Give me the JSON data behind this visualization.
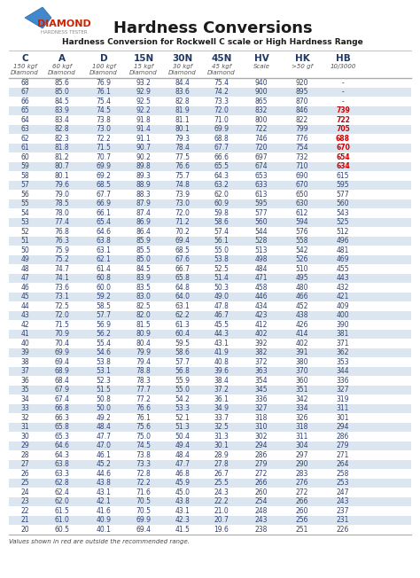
{
  "title": "Hardness Conversions",
  "subtitle": "Hardness Conversion for Rockwell C scale or High Hardness Range",
  "col_headers": [
    "C",
    "A",
    "D",
    "15N",
    "30N",
    "45N",
    "HV",
    "HK",
    "HB"
  ],
  "col_sub1": [
    "150 kgf",
    "60 kgf",
    "100 kgf",
    "15 kgf",
    "30 kgf",
    "45 kgf",
    "Scale",
    ">50 gf",
    "10/3000"
  ],
  "col_sub2": [
    "Diamond",
    "Diamond",
    "Diamond",
    "Diamond",
    "Diamond",
    "Diamond",
    "",
    "",
    ""
  ],
  "footer": "Values shown in red are outside the recommended range.",
  "rows": [
    [
      68,
      85.6,
      76.9,
      93.2,
      84.4,
      75.4,
      940,
      920,
      "-"
    ],
    [
      67,
      85.0,
      76.1,
      92.9,
      83.6,
      74.2,
      900,
      895,
      "-"
    ],
    [
      66,
      84.5,
      75.4,
      92.5,
      82.8,
      73.3,
      865,
      870,
      "-"
    ],
    [
      65,
      83.9,
      74.5,
      92.2,
      81.9,
      72.0,
      832,
      846,
      739
    ],
    [
      64,
      83.4,
      73.8,
      91.8,
      81.1,
      71.0,
      800,
      822,
      722
    ],
    [
      63,
      82.8,
      73.0,
      91.4,
      80.1,
      69.9,
      722,
      799,
      705
    ],
    [
      62,
      82.3,
      72.2,
      91.1,
      79.3,
      68.8,
      746,
      776,
      688
    ],
    [
      61,
      81.8,
      71.5,
      90.7,
      78.4,
      67.7,
      720,
      754,
      670
    ],
    [
      60,
      81.2,
      70.7,
      90.2,
      77.5,
      66.6,
      697,
      732,
      654
    ],
    [
      59,
      80.7,
      69.9,
      89.8,
      76.6,
      65.5,
      674,
      710,
      634
    ],
    [
      58,
      80.1,
      69.2,
      89.3,
      75.7,
      64.3,
      653,
      690,
      615
    ],
    [
      57,
      79.6,
      68.5,
      88.9,
      74.8,
      63.2,
      633,
      670,
      595
    ],
    [
      56,
      79.0,
      67.7,
      88.3,
      73.9,
      62.0,
      613,
      650,
      577
    ],
    [
      55,
      78.5,
      66.9,
      87.9,
      73.0,
      60.9,
      595,
      630,
      560
    ],
    [
      54,
      78.0,
      66.1,
      87.4,
      72.0,
      59.8,
      577,
      612,
      543
    ],
    [
      53,
      77.4,
      65.4,
      86.9,
      71.2,
      58.6,
      560,
      594,
      525
    ],
    [
      52,
      76.8,
      64.6,
      86.4,
      70.2,
      57.4,
      544,
      576,
      512
    ],
    [
      51,
      76.3,
      63.8,
      85.9,
      69.4,
      56.1,
      528,
      558,
      496
    ],
    [
      50,
      75.9,
      63.1,
      85.5,
      68.5,
      55.0,
      513,
      542,
      481
    ],
    [
      49,
      75.2,
      62.1,
      85.0,
      67.6,
      53.8,
      498,
      526,
      469
    ],
    [
      48,
      74.7,
      61.4,
      84.5,
      66.7,
      52.5,
      484,
      510,
      455
    ],
    [
      47,
      74.1,
      60.8,
      83.9,
      65.8,
      51.4,
      471,
      495,
      443
    ],
    [
      46,
      73.6,
      60.0,
      83.5,
      64.8,
      50.3,
      458,
      480,
      432
    ],
    [
      45,
      73.1,
      59.2,
      83.0,
      64.0,
      49.0,
      446,
      466,
      421
    ],
    [
      44,
      72.5,
      58.5,
      82.5,
      63.1,
      47.8,
      434,
      452,
      409
    ],
    [
      43,
      72.0,
      57.7,
      82.0,
      62.2,
      46.7,
      423,
      438,
      400
    ],
    [
      42,
      71.5,
      56.9,
      81.5,
      61.3,
      45.5,
      412,
      426,
      390
    ],
    [
      41,
      70.9,
      56.2,
      80.9,
      60.4,
      44.3,
      402,
      414,
      381
    ],
    [
      40,
      70.4,
      55.4,
      80.4,
      59.5,
      43.1,
      392,
      402,
      371
    ],
    [
      39,
      69.9,
      54.6,
      79.9,
      58.6,
      41.9,
      382,
      391,
      362
    ],
    [
      38,
      69.4,
      53.8,
      79.4,
      57.7,
      40.8,
      372,
      380,
      353
    ],
    [
      37,
      68.9,
      53.1,
      78.8,
      56.8,
      39.6,
      363,
      370,
      344
    ],
    [
      36,
      68.4,
      52.3,
      78.3,
      55.9,
      38.4,
      354,
      360,
      336
    ],
    [
      35,
      67.9,
      51.5,
      77.7,
      55.0,
      37.2,
      345,
      351,
      327
    ],
    [
      34,
      67.4,
      50.8,
      77.2,
      54.2,
      36.1,
      336,
      342,
      319
    ],
    [
      33,
      66.8,
      50.0,
      76.6,
      53.3,
      34.9,
      327,
      334,
      311
    ],
    [
      32,
      66.3,
      49.2,
      76.1,
      52.1,
      33.7,
      318,
      326,
      301
    ],
    [
      31,
      65.8,
      48.4,
      75.6,
      51.3,
      32.5,
      310,
      318,
      294
    ],
    [
      30,
      65.3,
      47.7,
      75.0,
      50.4,
      31.3,
      302,
      311,
      286
    ],
    [
      29,
      64.6,
      47.0,
      74.5,
      49.4,
      30.1,
      294,
      304,
      279
    ],
    [
      28,
      64.3,
      46.1,
      73.8,
      48.4,
      28.9,
      286,
      297,
      271
    ],
    [
      27,
      63.8,
      45.2,
      73.3,
      47.7,
      27.8,
      279,
      290,
      264
    ],
    [
      26,
      63.3,
      44.6,
      72.8,
      46.8,
      26.7,
      272,
      283,
      258
    ],
    [
      25,
      62.8,
      43.8,
      72.2,
      45.9,
      25.5,
      266,
      276,
      253
    ],
    [
      24,
      62.4,
      43.1,
      71.6,
      45.0,
      24.3,
      260,
      272,
      247
    ],
    [
      23,
      62.0,
      42.1,
      70.5,
      43.8,
      22.2,
      254,
      266,
      243
    ],
    [
      22,
      61.5,
      41.6,
      70.5,
      43.1,
      21.0,
      248,
      260,
      237
    ],
    [
      21,
      61.0,
      40.9,
      69.9,
      42.3,
      20.7,
      243,
      256,
      231
    ],
    [
      20,
      60.5,
      40.1,
      69.4,
      41.5,
      19.6,
      238,
      251,
      226
    ]
  ],
  "red_rows": [
    65,
    64,
    63,
    62,
    61,
    60,
    59
  ],
  "shaded_rows": [
    67,
    65,
    63,
    61,
    59,
    57,
    55,
    53,
    51,
    49,
    47,
    45,
    43,
    41,
    39,
    37,
    35,
    33,
    31,
    29,
    27,
    25,
    23,
    21
  ],
  "header_bg": "#4472c4",
  "header_text": "#ffffff",
  "shaded_bg": "#dce6f1",
  "white_bg": "#ffffff",
  "red_color": "#cc0000",
  "dark_blue": "#1f3864"
}
